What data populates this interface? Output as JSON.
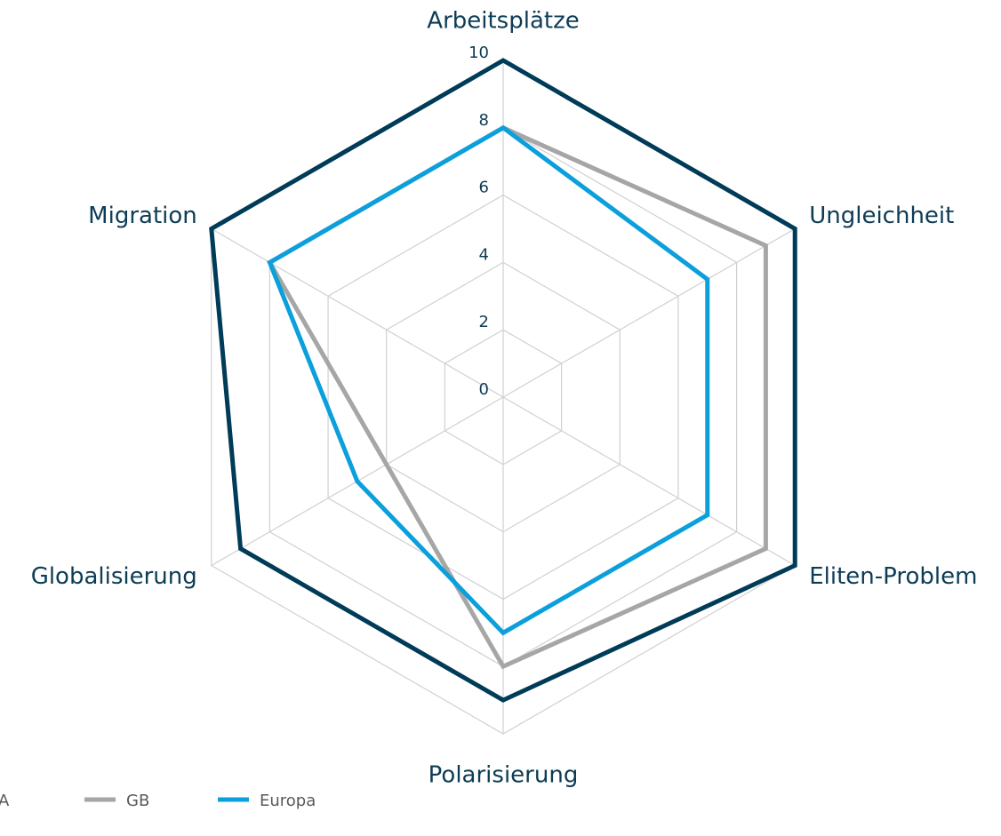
{
  "chart_data": {
    "type": "radar",
    "categories": [
      "Arbeitsplätze",
      "Ungleichheit",
      "Eliten-Problem",
      "Polarisierung",
      "Globalisierung",
      "Migration"
    ],
    "series": [
      {
        "name": "A",
        "color": "#003b57",
        "values": [
          10,
          10,
          10,
          9,
          9,
          10
        ]
      },
      {
        "name": "GB",
        "color": "#a6a6a6",
        "values": [
          8,
          9,
          9,
          8,
          4,
          8
        ]
      },
      {
        "name": "Europa",
        "color": "#0b9fdc",
        "values": [
          8,
          7,
          7,
          7,
          5,
          8
        ]
      }
    ],
    "rlim": [
      0,
      10
    ],
    "rticks": [
      0,
      2,
      4,
      6,
      8,
      10
    ],
    "grid": true,
    "legend": "bottom"
  }
}
